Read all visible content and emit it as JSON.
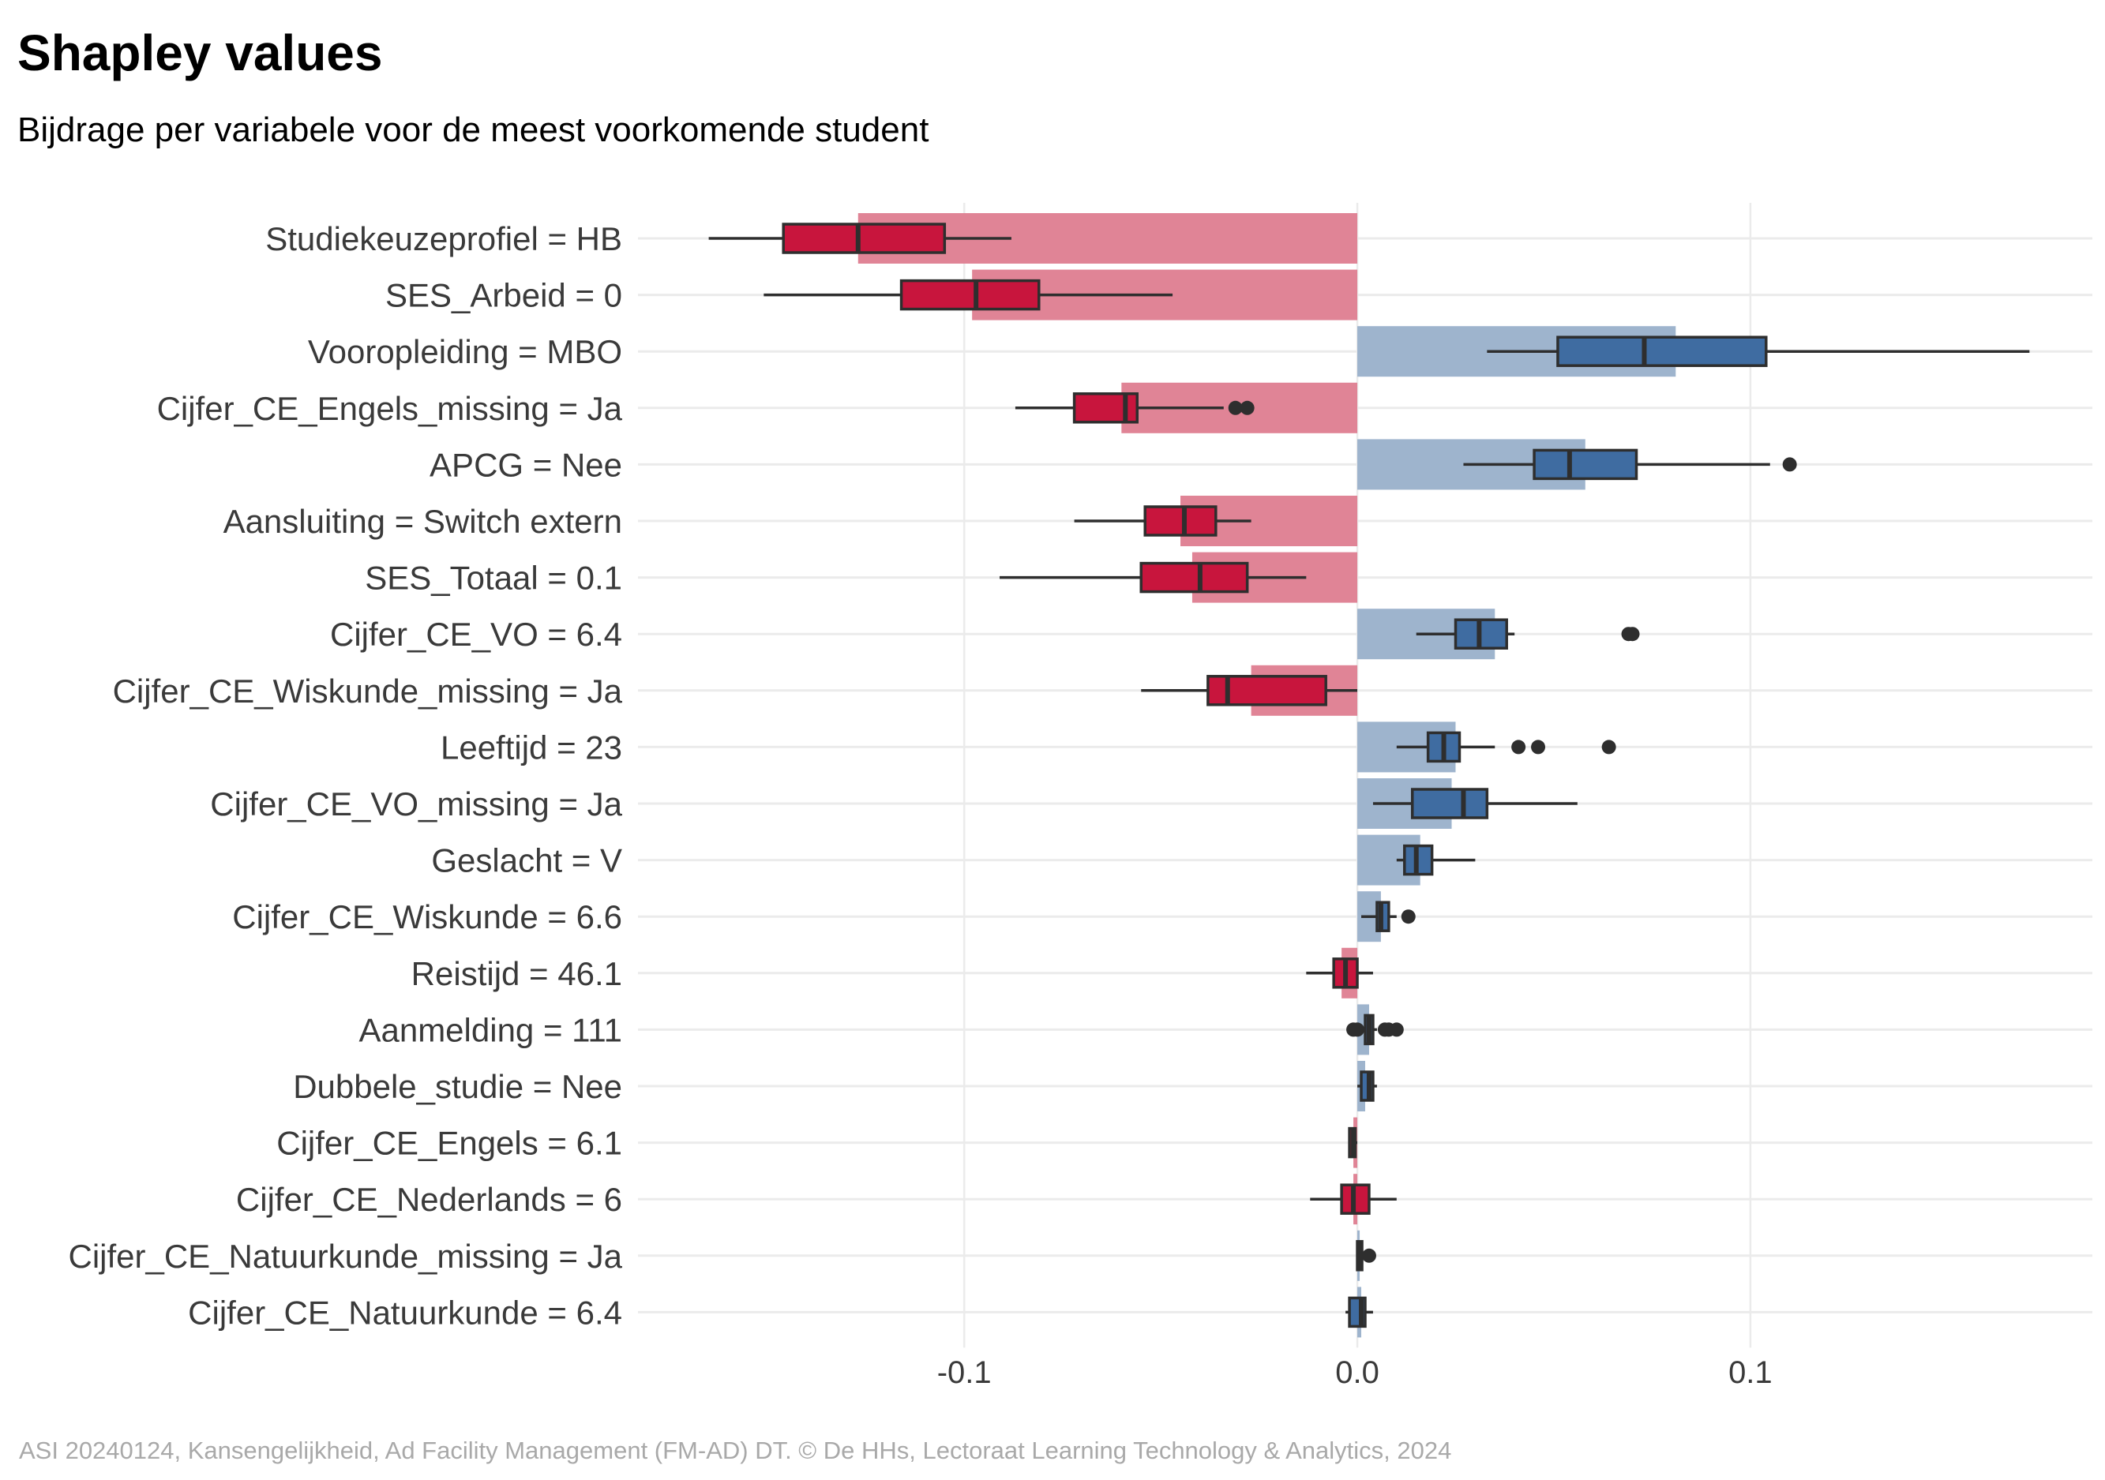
{
  "title": "Shapley values",
  "subtitle": "Bijdrage per variabele voor de meest voorkomende student",
  "caption": "ASI 20240124, Kansengelijkheid, Ad Facility Management (FM-AD) DT. © De HHs, Lectoraat Learning Technology & Analytics, 2024",
  "chart_data": {
    "type": "bar",
    "orientation": "horizontal",
    "grid": true,
    "xlim": [
      -0.183,
      0.187
    ],
    "x_ticks": [
      {
        "value": -0.1,
        "label": "-0.1"
      },
      {
        "value": 0.0,
        "label": "0.0"
      },
      {
        "value": 0.1,
        "label": "0.1"
      }
    ],
    "colors": {
      "negative_bar": "#E08496",
      "positive_bar": "#9EB4CD",
      "negative_box": "#C8153D",
      "positive_box": "#3F6CA1",
      "box_line": "#2E2E2E",
      "grid": "#EBEBEB"
    },
    "categories": [
      {
        "label": "Studiekeuzeprofiel = HB",
        "value": -0.127,
        "box": {
          "whisker_low": -0.165,
          "q1": -0.146,
          "median": -0.127,
          "q3": -0.105,
          "whisker_high": -0.088,
          "outliers": []
        }
      },
      {
        "label": "SES_Arbeid = 0",
        "value": -0.098,
        "box": {
          "whisker_low": -0.151,
          "q1": -0.116,
          "median": -0.097,
          "q3": -0.081,
          "whisker_high": -0.047,
          "outliers": []
        }
      },
      {
        "label": "Vooropleiding = MBO",
        "value": 0.081,
        "box": {
          "whisker_low": 0.033,
          "q1": 0.051,
          "median": 0.073,
          "q3": 0.104,
          "whisker_high": 0.171,
          "outliers": []
        }
      },
      {
        "label": "Cijfer_CE_Engels_missing = Ja",
        "value": -0.06,
        "box": {
          "whisker_low": -0.087,
          "q1": -0.072,
          "median": -0.059,
          "q3": -0.056,
          "whisker_high": -0.034,
          "outliers": [
            -0.031,
            -0.028
          ]
        }
      },
      {
        "label": "APCG = Nee",
        "value": 0.058,
        "box": {
          "whisker_low": 0.027,
          "q1": 0.045,
          "median": 0.054,
          "q3": 0.071,
          "whisker_high": 0.105,
          "outliers": [
            0.11
          ]
        }
      },
      {
        "label": "Aansluiting = Switch extern",
        "value": -0.045,
        "box": {
          "whisker_low": -0.072,
          "q1": -0.054,
          "median": -0.044,
          "q3": -0.036,
          "whisker_high": -0.027,
          "outliers": []
        }
      },
      {
        "label": "SES_Totaal = 0.1",
        "value": -0.042,
        "box": {
          "whisker_low": -0.091,
          "q1": -0.055,
          "median": -0.04,
          "q3": -0.028,
          "whisker_high": -0.013,
          "outliers": []
        }
      },
      {
        "label": "Cijfer_CE_VO = 6.4",
        "value": 0.035,
        "box": {
          "whisker_low": 0.015,
          "q1": 0.025,
          "median": 0.031,
          "q3": 0.038,
          "whisker_high": 0.04,
          "outliers": [
            0.069,
            0.07
          ]
        }
      },
      {
        "label": "Cijfer_CE_Wiskunde_missing = Ja",
        "value": -0.027,
        "box": {
          "whisker_low": -0.055,
          "q1": -0.038,
          "median": -0.033,
          "q3": -0.008,
          "whisker_high": 0.0,
          "outliers": []
        }
      },
      {
        "label": "Leeftijd = 23",
        "value": 0.025,
        "box": {
          "whisker_low": 0.01,
          "q1": 0.018,
          "median": 0.022,
          "q3": 0.026,
          "whisker_high": 0.035,
          "outliers": [
            0.041,
            0.046,
            0.064
          ]
        }
      },
      {
        "label": "Cijfer_CE_VO_missing = Ja",
        "value": 0.024,
        "box": {
          "whisker_low": 0.004,
          "q1": 0.014,
          "median": 0.027,
          "q3": 0.033,
          "whisker_high": 0.056,
          "outliers": []
        }
      },
      {
        "label": "Geslacht = V",
        "value": 0.016,
        "box": {
          "whisker_low": 0.01,
          "q1": 0.012,
          "median": 0.015,
          "q3": 0.019,
          "whisker_high": 0.03,
          "outliers": []
        }
      },
      {
        "label": "Cijfer_CE_Wiskunde = 6.6",
        "value": 0.006,
        "box": {
          "whisker_low": 0.001,
          "q1": 0.005,
          "median": 0.006,
          "q3": 0.008,
          "whisker_high": 0.01,
          "outliers": [
            0.013
          ]
        }
      },
      {
        "label": "Reistijd = 46.1",
        "value": -0.004,
        "box": {
          "whisker_low": -0.013,
          "q1": -0.006,
          "median": -0.003,
          "q3": 0.0,
          "whisker_high": 0.004,
          "outliers": []
        }
      },
      {
        "label": "Aanmelding = 111",
        "value": 0.003,
        "box": {
          "whisker_low": 0.0,
          "q1": 0.002,
          "median": 0.003,
          "q3": 0.004,
          "whisker_high": 0.005,
          "outliers": [
            -0.001,
            0.0,
            0.007,
            0.008,
            0.01
          ]
        }
      },
      {
        "label": "Dubbele_studie = Nee",
        "value": 0.002,
        "box": {
          "whisker_low": 0.0,
          "q1": 0.001,
          "median": 0.003,
          "q3": 0.004,
          "whisker_high": 0.005,
          "outliers": []
        }
      },
      {
        "label": "Cijfer_CE_Engels = 6.1",
        "value": -0.001,
        "box": {
          "whisker_low": -0.002,
          "q1": -0.002,
          "median": -0.001,
          "q3": -0.0005,
          "whisker_high": 0.0,
          "outliers": []
        }
      },
      {
        "label": "Cijfer_CE_Nederlands = 6",
        "value": -0.001,
        "box": {
          "whisker_low": -0.012,
          "q1": -0.004,
          "median": -0.001,
          "q3": 0.003,
          "whisker_high": 0.01,
          "outliers": []
        }
      },
      {
        "label": "Cijfer_CE_Natuurkunde_missing = Ja",
        "value": 0.0005,
        "box": {
          "whisker_low": 0.0,
          "q1": 0.0,
          "median": 0.0005,
          "q3": 0.001,
          "whisker_high": 0.002,
          "outliers": [
            0.003
          ]
        }
      },
      {
        "label": "Cijfer_CE_Natuurkunde = 6.4",
        "value": 0.001,
        "box": {
          "whisker_low": -0.003,
          "q1": -0.002,
          "median": 0.001,
          "q3": 0.002,
          "whisker_high": 0.004,
          "outliers": []
        }
      }
    ]
  }
}
